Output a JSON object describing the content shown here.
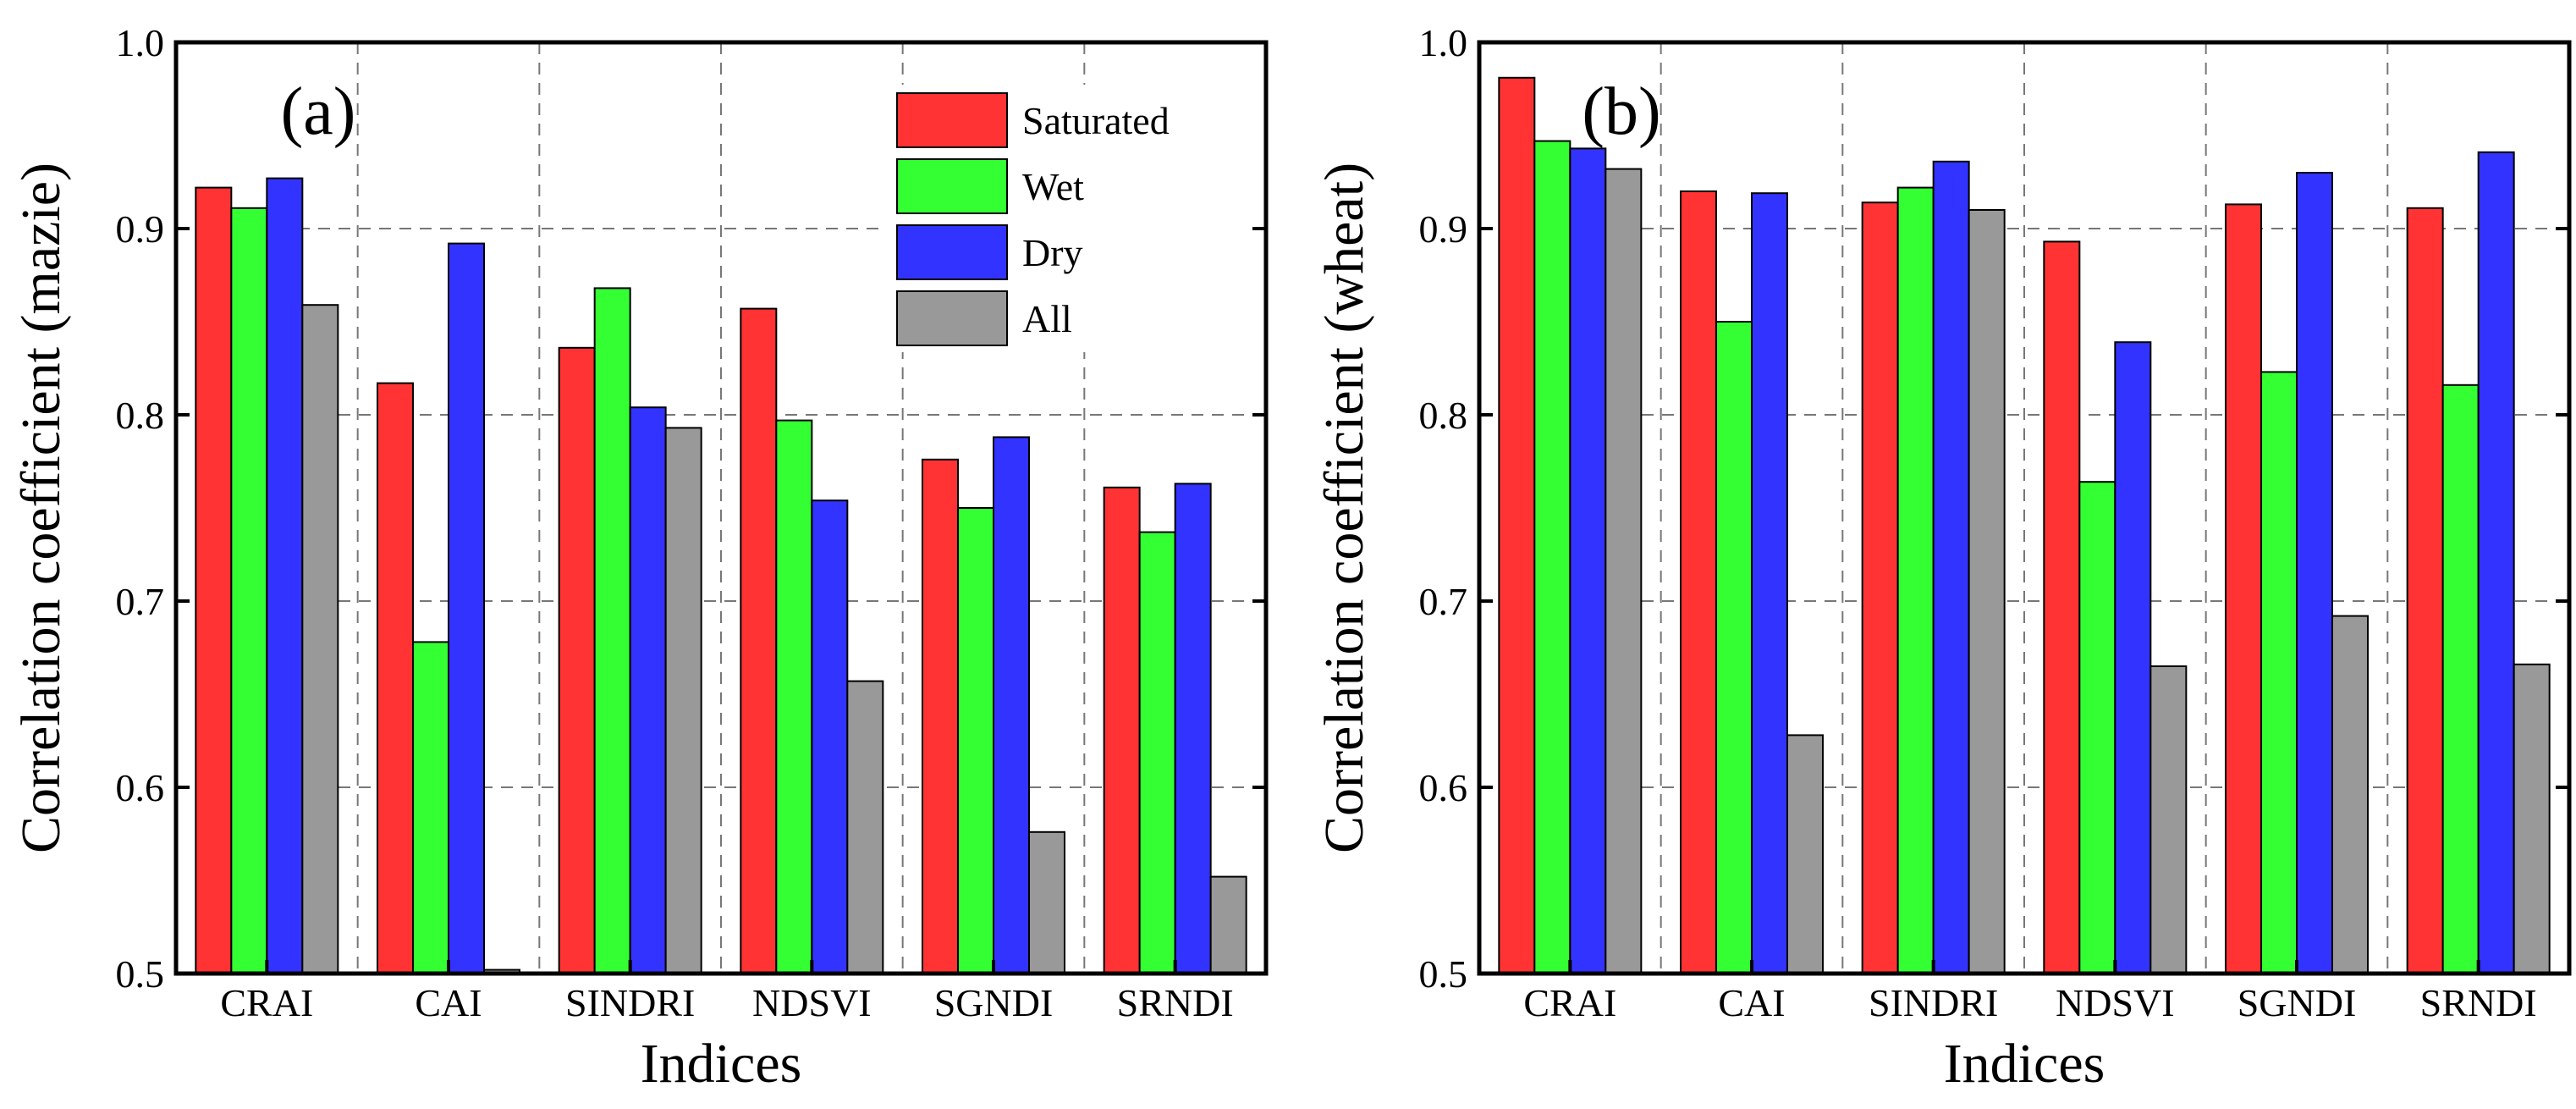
{
  "figure": {
    "description_free": true
  },
  "chart_data": [
    {
      "panel": "(a)",
      "type": "bar",
      "xlabel": "Indices",
      "ylabel": "Correlation coefficient (mazie)",
      "ylim": [
        0.5,
        1.0
      ],
      "yticks": [
        "0.5",
        "0.6",
        "0.7",
        "0.8",
        "0.9",
        "1.0"
      ],
      "ytick_values": [
        0.5,
        0.6,
        0.7,
        0.8,
        0.9,
        1.0
      ],
      "grid": true,
      "legend": "top-right",
      "categories": [
        "CRAI",
        "CAI",
        "SINDRI",
        "NDSVI",
        "SGNDI",
        "SRNDI"
      ],
      "series": [
        {
          "name": "Saturated",
          "color": "#ff3333",
          "values": [
            0.922,
            0.817,
            0.836,
            0.857,
            0.776,
            0.761
          ]
        },
        {
          "name": "Wet",
          "color": "#33ff33",
          "values": [
            0.911,
            0.678,
            0.868,
            0.797,
            0.75,
            0.737
          ]
        },
        {
          "name": "Dry",
          "color": "#3333ff",
          "values": [
            0.927,
            0.892,
            0.804,
            0.754,
            0.788,
            0.763
          ]
        },
        {
          "name": "All",
          "color": "#999999",
          "values": [
            0.859,
            0.502,
            0.793,
            0.657,
            0.576,
            0.552
          ]
        }
      ]
    },
    {
      "panel": "(b)",
      "type": "bar",
      "xlabel": "Indices",
      "ylabel": "Correlation coefficient (wheat)",
      "ylim": [
        0.5,
        1.0
      ],
      "yticks": [
        "0.5",
        "0.6",
        "0.7",
        "0.8",
        "0.9",
        "1.0"
      ],
      "ytick_values": [
        0.5,
        0.6,
        0.7,
        0.8,
        0.9,
        1.0
      ],
      "grid": true,
      "legend": "none",
      "categories": [
        "CRAI",
        "CAI",
        "SINDRI",
        "NDSVI",
        "SGNDI",
        "SRNDI"
      ],
      "series": [
        {
          "name": "Saturated",
          "color": "#ff3333",
          "values": [
            0.981,
            0.92,
            0.914,
            0.893,
            0.913,
            0.911
          ]
        },
        {
          "name": "Wet",
          "color": "#33ff33",
          "values": [
            0.947,
            0.85,
            0.922,
            0.764,
            0.823,
            0.816
          ]
        },
        {
          "name": "Dry",
          "color": "#3333ff",
          "values": [
            0.943,
            0.919,
            0.936,
            0.839,
            0.93,
            0.941
          ]
        },
        {
          "name": "All",
          "color": "#999999",
          "values": [
            0.932,
            0.628,
            0.91,
            0.665,
            0.692,
            0.666
          ]
        }
      ]
    }
  ]
}
